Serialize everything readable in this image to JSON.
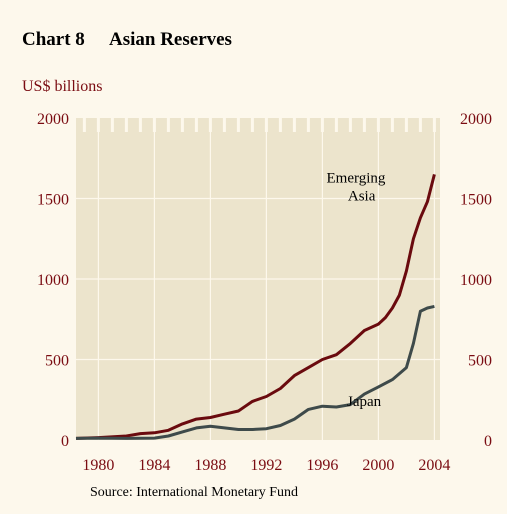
{
  "header": {
    "chart_number": "Chart 8",
    "title": "Asian Reserves"
  },
  "colors": {
    "background": "#fdf8ec",
    "plot_area": "#ece4cc",
    "grid": "#fdf8ec",
    "axis_text": "#7a0c12",
    "emerging_asia": "#6a0a0e",
    "japan": "#3e4a4a"
  },
  "chart_data": {
    "type": "line",
    "title": "Asian Reserves",
    "ylabel": "US$ billions",
    "xlabel": "",
    "xlim": [
      1978.4,
      2004.4
    ],
    "ylim": [
      0,
      2000
    ],
    "y_ticks": [
      "0",
      "500",
      "1000",
      "1500",
      "2000"
    ],
    "y_tick_values": [
      0,
      500,
      1000,
      1500,
      2000
    ],
    "x_ticks": [
      "1980",
      "1984",
      "1988",
      "1992",
      "1996",
      "2000",
      "2004"
    ],
    "x_tick_values": [
      1980,
      1984,
      1988,
      1992,
      1996,
      2000,
      2004
    ],
    "grid": true,
    "dual_y_axis": true,
    "series": [
      {
        "name": "Emerging Asia",
        "label": "Emerging Asia",
        "label_lines": [
          "Emerging",
          "Asia"
        ],
        "x": [
          1978.4,
          1980,
          1982,
          1983,
          1984,
          1985,
          1986,
          1987,
          1988,
          1989,
          1990,
          1990.5,
          1991,
          1992,
          1993,
          1994,
          1995,
          1996,
          1997,
          1998,
          1999,
          2000,
          2000.5,
          2001,
          2001.5,
          2002,
          2002.5,
          2003,
          2003.5,
          2004
        ],
        "values": [
          10,
          15,
          25,
          40,
          45,
          60,
          100,
          130,
          140,
          160,
          180,
          210,
          240,
          270,
          320,
          400,
          450,
          500,
          530,
          600,
          680,
          720,
          760,
          820,
          900,
          1050,
          1250,
          1380,
          1480,
          1650
        ]
      },
      {
        "name": "Japan",
        "label": "Japan",
        "label_lines": [
          "Japan"
        ],
        "x": [
          1978.4,
          1980,
          1982,
          1984,
          1985,
          1986,
          1987,
          1988,
          1989,
          1990,
          1991,
          1992,
          1993,
          1994,
          1995,
          1996,
          1997,
          1998,
          1999,
          2000,
          2001,
          2002,
          2002.5,
          2003,
          2003.5,
          2004
        ],
        "values": [
          10,
          12,
          10,
          12,
          25,
          50,
          75,
          85,
          75,
          65,
          65,
          70,
          90,
          130,
          190,
          210,
          205,
          220,
          285,
          330,
          375,
          450,
          600,
          800,
          820,
          830
        ]
      }
    ]
  },
  "footer": {
    "source": "Source: International Monetary Fund"
  }
}
